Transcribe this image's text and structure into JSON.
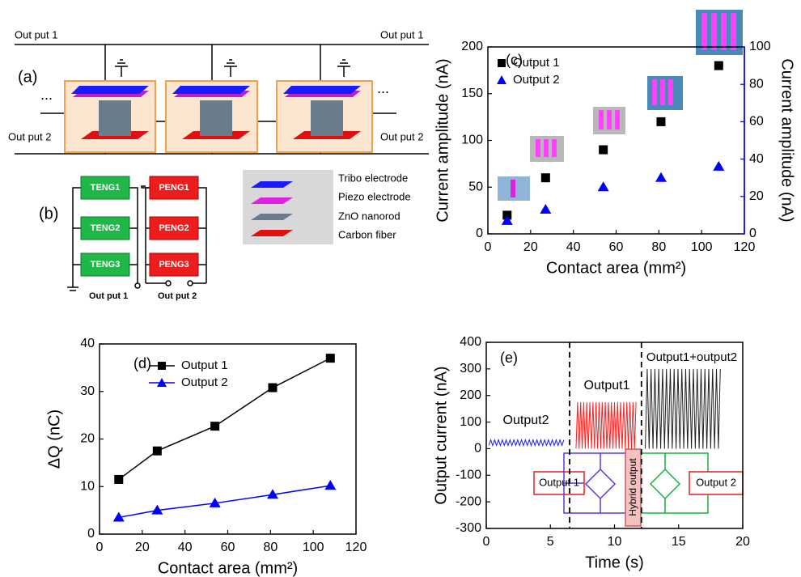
{
  "figure": {
    "panel_a": {
      "label": "(a)",
      "output1": [
        "Out put 1",
        "Out put 1"
      ],
      "output2": [
        "Out put 2",
        "Out put 2"
      ],
      "ellipses": [
        "...",
        "..."
      ]
    },
    "panel_b": {
      "label": "(b)",
      "teng": [
        "TENG1",
        "TENG2",
        "TENG3"
      ],
      "peng": [
        "PENG1",
        "PENG2",
        "PENG3"
      ],
      "outputs": [
        "Out put 1",
        "Out put 2"
      ],
      "layers": [
        "Tribo electrode",
        "Piezo electrode",
        "ZnO nanorod",
        "Carbon fiber"
      ]
    }
  },
  "chart_data": [
    {
      "type": "scatter",
      "panel_label": "(c)",
      "xlabel": "Contact area (mm²)",
      "ylabel": "Current amplitude (nA)",
      "y2label": "Current amplitude (nA)",
      "x": [
        9,
        27,
        54,
        81,
        108
      ],
      "xlim": [
        0,
        120
      ],
      "xticks": [
        0,
        20,
        40,
        60,
        80,
        100,
        120
      ],
      "ylim": [
        0,
        200
      ],
      "yticks": [
        0,
        50,
        100,
        150,
        200
      ],
      "y2lim": [
        0,
        100
      ],
      "y2ticks": [
        0,
        20,
        40,
        60,
        80,
        100
      ],
      "y2color": "#0000ff",
      "legend": "upper left",
      "series": [
        {
          "name": "Output 1",
          "color": "#000000",
          "marker": "square",
          "values": [
            20,
            60,
            90,
            120,
            180
          ]
        },
        {
          "name": "Output 2",
          "color": "#0000ff",
          "marker": "triangle",
          "axis": "y2",
          "values": [
            7,
            13,
            25,
            30,
            36
          ]
        }
      ]
    },
    {
      "type": "line",
      "panel_label": "(d)",
      "xlabel": "Contact area (mm²)",
      "ylabel": "ΔQ (nC)",
      "x": [
        9,
        27,
        54,
        81,
        108
      ],
      "xlim": [
        0,
        120
      ],
      "xticks": [
        0,
        20,
        40,
        60,
        80,
        100,
        120
      ],
      "ylim": [
        0,
        40
      ],
      "yticks": [
        0,
        10,
        20,
        30,
        40
      ],
      "legend": "upper left",
      "series": [
        {
          "name": "Output 1",
          "color": "#000000",
          "marker": "square",
          "values": [
            11.5,
            17.5,
            22.7,
            30.8,
            37
          ]
        },
        {
          "name": "Output 2",
          "color": "#0000ff",
          "marker": "triangle",
          "values": [
            3.5,
            5,
            6.5,
            8.3,
            10.2
          ]
        }
      ]
    },
    {
      "type": "line",
      "panel_label": "(e)",
      "xlabel": "Time (s)",
      "ylabel": "Output current (nA)",
      "xlim": [
        0,
        20
      ],
      "xticks": [
        0,
        5,
        10,
        15,
        20
      ],
      "ylim": [
        -300,
        400
      ],
      "yticks": [
        -300,
        -200,
        -100,
        0,
        100,
        200,
        300,
        400
      ],
      "vlines": [
        6.5,
        12.1
      ],
      "annotations": [
        "Output2",
        "Output1",
        "Output1+output2",
        "Output 1",
        "Hybrid output",
        "Output 2"
      ],
      "series": [
        {
          "color": "#1a1aff",
          "x": [
            0.2,
            0.35,
            0.5,
            0.65,
            0.8,
            0.95,
            1.1,
            1.25,
            1.4,
            1.55,
            1.7,
            1.85,
            2.0,
            2.15,
            2.3,
            2.45,
            2.6,
            2.75,
            2.9,
            3.05,
            3.2,
            3.35,
            3.5,
            3.65,
            3.8,
            3.95,
            4.1,
            4.25,
            4.4,
            4.55,
            4.7,
            4.85,
            5.0,
            5.15,
            5.3,
            5.45,
            5.6,
            5.75,
            5.9,
            6.05
          ],
          "values": [
            12,
            33,
            12,
            33,
            12,
            33,
            12,
            33,
            12,
            33,
            12,
            33,
            12,
            33,
            12,
            33,
            12,
            33,
            12,
            33,
            12,
            33,
            12,
            33,
            12,
            33,
            12,
            33,
            12,
            33,
            12,
            33,
            12,
            33,
            12,
            33,
            12,
            33,
            12,
            33
          ]
        },
        {
          "color": "#ff2020",
          "x": [
            7.0,
            7.12,
            7.24,
            7.36,
            7.48,
            7.6,
            7.72,
            7.84,
            7.96,
            8.08,
            8.2,
            8.32,
            8.44,
            8.56,
            8.68,
            8.8,
            8.92,
            9.04,
            9.16,
            9.28,
            9.4,
            9.52,
            9.64,
            9.76,
            9.88,
            10.0,
            10.12,
            10.24,
            10.36,
            10.48,
            10.6,
            10.72,
            10.84,
            10.96,
            11.08,
            11.2,
            11.32,
            11.44,
            11.56,
            11.68
          ],
          "values": [
            0,
            175,
            0,
            175,
            0,
            175,
            0,
            175,
            0,
            175,
            0,
            175,
            0,
            175,
            0,
            175,
            0,
            175,
            0,
            175,
            0,
            175,
            0,
            175,
            0,
            175,
            0,
            175,
            0,
            175,
            0,
            175,
            0,
            175,
            0,
            175,
            0,
            175,
            0,
            175
          ]
        },
        {
          "color": "#222222",
          "x": [
            12.4,
            12.55,
            12.7,
            12.85,
            13.0,
            13.15,
            13.3,
            13.45,
            13.6,
            13.75,
            13.9,
            14.05,
            14.2,
            14.35,
            14.5,
            14.65,
            14.8,
            14.95,
            15.1,
            15.25,
            15.4,
            15.55,
            15.7,
            15.85,
            16.0,
            16.15,
            16.3,
            16.45,
            16.6,
            16.75,
            16.9,
            17.05,
            17.2,
            17.35,
            17.5,
            17.65,
            17.8,
            17.95,
            18.1,
            18.25
          ],
          "values": [
            0,
            300,
            0,
            300,
            0,
            300,
            0,
            300,
            0,
            300,
            0,
            300,
            0,
            300,
            0,
            300,
            0,
            300,
            0,
            300,
            0,
            300,
            0,
            300,
            0,
            300,
            0,
            300,
            0,
            300,
            0,
            300,
            0,
            300,
            0,
            300,
            0,
            300,
            0,
            300
          ]
        }
      ]
    }
  ]
}
